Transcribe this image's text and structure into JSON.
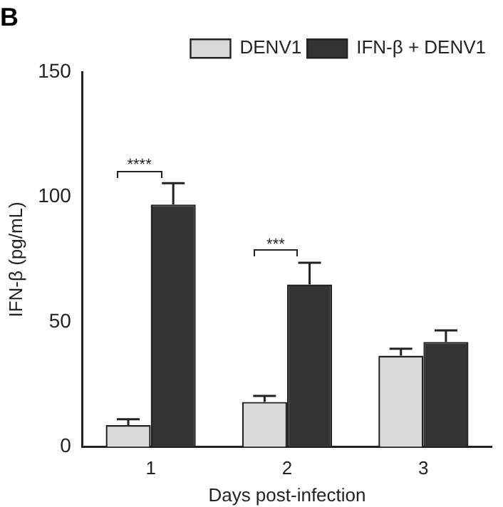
{
  "chart_data": {
    "type": "bar",
    "title": "B",
    "xlabel": "Days post-infection",
    "ylabel": "IFN-β (pg/mL)",
    "categories": [
      "1",
      "2",
      "3"
    ],
    "series": [
      {
        "name": "DENV1",
        "color": "#d9d9d9",
        "values": [
          8.7,
          18,
          36.5
        ],
        "errors": [
          2.4,
          2.4,
          2.8
        ]
      },
      {
        "name": "IFN-β + DENV1",
        "color": "#333333",
        "values": [
          97,
          65,
          42
        ],
        "errors": [
          8.5,
          8.7,
          4.6
        ]
      }
    ],
    "ylim": [
      0,
      150
    ],
    "yticks": [
      0,
      50,
      100,
      150
    ],
    "grid": false,
    "legend": "top right",
    "annotations": [
      "****",
      "***"
    ]
  }
}
